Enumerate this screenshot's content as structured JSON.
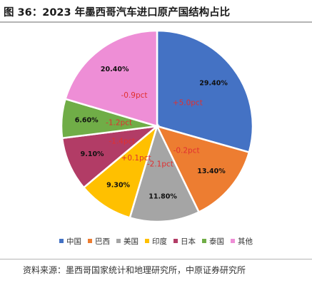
{
  "title": "图 36：2023 年墨西哥汽车进口原产国结构占比",
  "source": "资料来源：墨西哥国家统计和地理研究所，中原证券研究所",
  "chart_data": {
    "type": "pie",
    "title": "图 36：2023 年墨西哥汽车进口原产国结构占比",
    "legend_position": "bottom",
    "slices": [
      {
        "name": "中国",
        "value": 29.4,
        "label": "29.40%",
        "change": "+5.0pct",
        "color": "#4472C4"
      },
      {
        "name": "巴西",
        "value": 13.4,
        "label": "13.40%",
        "change": "-0.2pct",
        "color": "#ED7D31"
      },
      {
        "name": "美国",
        "value": 11.8,
        "label": "11.80%",
        "change": "-2.1pct",
        "color": "#A5A5A5"
      },
      {
        "name": "印度",
        "value": 9.3,
        "label": "9.30%",
        "change": "+0.1pct",
        "color": "#FFC000"
      },
      {
        "name": "日本",
        "value": 9.1,
        "label": "9.10%",
        "change": "-1.4pct",
        "color": "#B23C66"
      },
      {
        "name": "泰国",
        "value": 6.6,
        "label": "6.60%",
        "change": "-1.2pct",
        "color": "#70AD47"
      },
      {
        "name": "其他",
        "value": 20.4,
        "label": "20.40%",
        "change": "-0.9pct",
        "color": "#EE8ED6"
      }
    ]
  }
}
